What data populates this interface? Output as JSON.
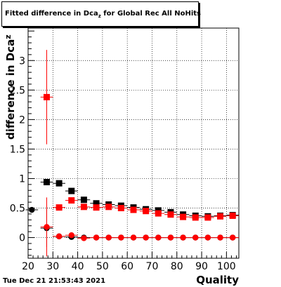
{
  "title": {
    "main": "Fitted difference in Dca",
    "sub": "z",
    "rest": " for Global Rec All NoHits"
  },
  "ylabel": {
    "main": "difference in Dca",
    "sub": "z"
  },
  "xlabel": "Quality",
  "timestamp": "Tue Dec 21 21:53:43 2021",
  "chart_data": {
    "type": "scatter",
    "xlim": [
      20,
      105
    ],
    "ylim": [
      -0.35,
      3.55
    ],
    "xticks": [
      20,
      30,
      40,
      50,
      60,
      70,
      80,
      90,
      100
    ],
    "yticks": [
      0,
      0.5,
      1,
      1.5,
      2,
      2.5,
      3
    ],
    "ytick_labels": [
      "0",
      "0.5",
      "1",
      "1.5",
      "2",
      "2.5",
      "3"
    ],
    "grid": true,
    "series": [
      {
        "color": "#000000",
        "marker": "circle",
        "points": [
          {
            "x": 21.5,
            "y": 0.47
          },
          {
            "x": 27.5,
            "y": 0.16,
            "err": 0.32
          },
          {
            "x": 32.5,
            "y": 0.02
          },
          {
            "x": 37.5,
            "y": 0.01
          },
          {
            "x": 42.5,
            "y": 0.0
          },
          {
            "x": 47.5,
            "y": 0.0
          },
          {
            "x": 52.5,
            "y": 0.0
          },
          {
            "x": 57.5,
            "y": 0.0
          },
          {
            "x": 62.5,
            "y": 0.0
          },
          {
            "x": 67.5,
            "y": 0.0
          },
          {
            "x": 72.5,
            "y": 0.0
          },
          {
            "x": 77.5,
            "y": 0.0
          },
          {
            "x": 82.5,
            "y": 0.0
          },
          {
            "x": 87.5,
            "y": 0.0
          },
          {
            "x": 92.5,
            "y": 0.0
          },
          {
            "x": 97.5,
            "y": 0.0
          },
          {
            "x": 102.5,
            "y": 0.0
          }
        ]
      },
      {
        "color": "#000000",
        "marker": "square",
        "points": [
          {
            "x": 27.5,
            "y": 0.94
          },
          {
            "x": 32.5,
            "y": 0.92
          },
          {
            "x": 37.5,
            "y": 0.79
          },
          {
            "x": 42.5,
            "y": 0.64
          },
          {
            "x": 47.5,
            "y": 0.58
          },
          {
            "x": 52.5,
            "y": 0.56
          },
          {
            "x": 57.5,
            "y": 0.54
          },
          {
            "x": 62.5,
            "y": 0.51
          },
          {
            "x": 67.5,
            "y": 0.48
          },
          {
            "x": 72.5,
            "y": 0.46
          },
          {
            "x": 77.5,
            "y": 0.43
          },
          {
            "x": 82.5,
            "y": 0.39
          },
          {
            "x": 87.5,
            "y": 0.37
          },
          {
            "x": 92.5,
            "y": 0.36
          },
          {
            "x": 97.5,
            "y": 0.37
          },
          {
            "x": 102.5,
            "y": 0.38
          }
        ]
      },
      {
        "color": "#ff0000",
        "marker": "circle",
        "points": [
          {
            "x": 27.5,
            "y": 0.18,
            "err": 0.5
          },
          {
            "x": 32.5,
            "y": 0.02
          },
          {
            "x": 37.5,
            "y": 0.04
          },
          {
            "x": 42.5,
            "y": -0.01
          },
          {
            "x": 47.5,
            "y": 0.0
          },
          {
            "x": 52.5,
            "y": 0.0
          },
          {
            "x": 57.5,
            "y": 0.0
          },
          {
            "x": 62.5,
            "y": 0.0
          },
          {
            "x": 67.5,
            "y": 0.0
          },
          {
            "x": 72.5,
            "y": 0.0
          },
          {
            "x": 77.5,
            "y": 0.0
          },
          {
            "x": 82.5,
            "y": 0.0
          },
          {
            "x": 87.5,
            "y": 0.0
          },
          {
            "x": 92.5,
            "y": 0.0
          },
          {
            "x": 97.5,
            "y": 0.0
          },
          {
            "x": 102.5,
            "y": 0.0
          }
        ]
      },
      {
        "color": "#ff0000",
        "marker": "square",
        "points": [
          {
            "x": 27.5,
            "y": 2.38,
            "err": 0.8
          },
          {
            "x": 32.5,
            "y": 0.51
          },
          {
            "x": 37.5,
            "y": 0.63
          },
          {
            "x": 42.5,
            "y": 0.52
          },
          {
            "x": 47.5,
            "y": 0.51
          },
          {
            "x": 52.5,
            "y": 0.52
          },
          {
            "x": 57.5,
            "y": 0.5
          },
          {
            "x": 62.5,
            "y": 0.47
          },
          {
            "x": 67.5,
            "y": 0.45
          },
          {
            "x": 72.5,
            "y": 0.41
          },
          {
            "x": 77.5,
            "y": 0.39
          },
          {
            "x": 82.5,
            "y": 0.35
          },
          {
            "x": 87.5,
            "y": 0.34
          },
          {
            "x": 92.5,
            "y": 0.34
          },
          {
            "x": 97.5,
            "y": 0.36
          },
          {
            "x": 102.5,
            "y": 0.37
          }
        ]
      }
    ]
  }
}
